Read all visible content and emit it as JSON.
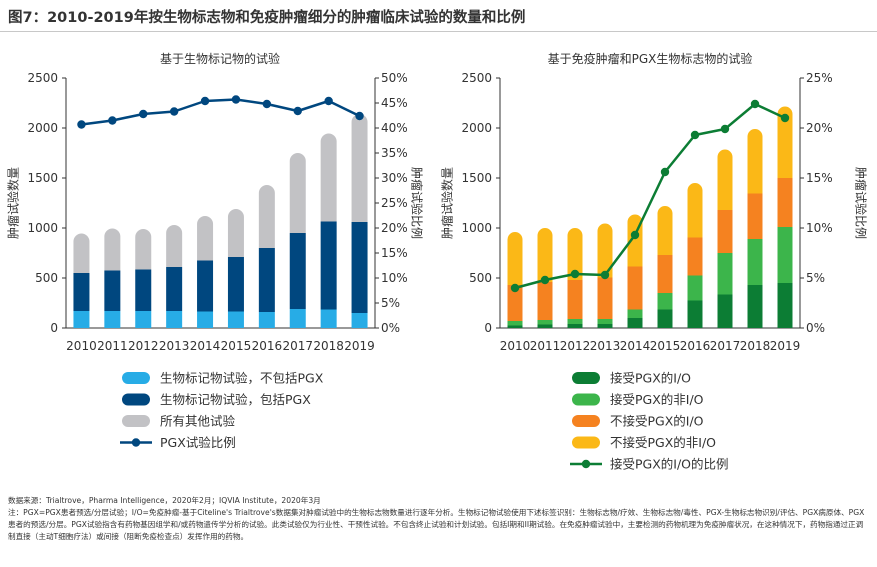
{
  "figure_title": "图7：2010-2019年按生物标志物和免疫肿瘤细分的肿瘤临床试验的数量和比例",
  "source": "数据来源：Trialtrove，Pharma Intelligence，2020年2月；IQVIA Institute，2020年3月",
  "note": "注：PGX=PGX患者预选/分层试验；I/O=免疫肿瘤-基于Citeline's Trialtrove's数据集对肿瘤试验中的生物标志物数量进行逐年分析。生物标记物试验使用下述标签识别：生物标志物/疗效、生物标志物/毒性、PGX-生物标志物识别/评估、PGX病原体、PGX患者的预选/分层。PGX试验指含有药物基因组学和/或药物遗传学分析的试验。此类试验仅为行业性、干预性试验。不包含终止试验和计划试验。包括I期和II期试验。在免疫肿瘤试验中，主要检测的药物机理为免疫肿瘤状况，在这种情况下，药物指通过正调制直接（主动T细胞疗法）或间接（阻断免疫检查点）发挥作用的药物。",
  "colors": {
    "light_blue": "#27ace6",
    "dark_blue": "#00477f",
    "gray": "#c2c2c5",
    "dark_green": "#0c7d34",
    "light_green": "#3cb54b",
    "orange": "#f58220",
    "yellow": "#fbb817",
    "axis": "#333333"
  },
  "chart_data": [
    {
      "id": "left",
      "type": "bar",
      "stacked": true,
      "title": "基于生物标记物的试验",
      "ylabel": "肿瘤试验数量",
      "y2label": "肿瘤试验比例",
      "ylim": [
        0,
        2500
      ],
      "yticks": [
        "0",
        "500",
        "1000",
        "1500",
        "2000",
        "2500"
      ],
      "y2lim": [
        0,
        50
      ],
      "y2ticks": [
        "0%",
        "5%",
        "10%",
        "15%",
        "20%",
        "25%",
        "30%",
        "35%",
        "40%",
        "45%",
        "50%"
      ],
      "categories": [
        "2010",
        "2011",
        "2012",
        "2013",
        "2014",
        "2015",
        "2016",
        "2017",
        "2018",
        "2019"
      ],
      "series": [
        {
          "name": "生物标记物试验，不包括PGX",
          "color_key": "light_blue",
          "values": [
            170,
            170,
            170,
            170,
            165,
            165,
            160,
            190,
            185,
            150
          ]
        },
        {
          "name": "生物标记物试验，包括PGX",
          "color_key": "dark_blue",
          "values": [
            380,
            405,
            415,
            440,
            510,
            545,
            640,
            760,
            880,
            910
          ]
        },
        {
          "name": "所有其他试验",
          "color_key": "gray",
          "values": [
            395,
            420,
            405,
            420,
            445,
            480,
            630,
            800,
            880,
            1080
          ]
        }
      ],
      "line": {
        "name": "PGX试验比例",
        "color_key": "dark_blue",
        "values": [
          40.7,
          41.5,
          42.8,
          43.3,
          45.4,
          45.7,
          44.8,
          43.4,
          45.4,
          42.4
        ]
      },
      "legend": [
        {
          "label": "生物标记物试验，不包括PGX",
          "kind": "rect",
          "color_key": "light_blue"
        },
        {
          "label": "生物标记物试验，包括PGX",
          "kind": "rect",
          "color_key": "dark_blue"
        },
        {
          "label": "所有其他试验",
          "kind": "rect",
          "color_key": "gray"
        },
        {
          "label": "PGX试验比例",
          "kind": "line",
          "color_key": "dark_blue"
        }
      ]
    },
    {
      "id": "right",
      "type": "bar",
      "stacked": true,
      "title": "基于免疫肿瘤和PGX生物标志物的试验",
      "ylabel": "肿瘤试验数量",
      "y2label": "肿瘤试验比例",
      "ylim": [
        0,
        2500
      ],
      "yticks": [
        "0",
        "500",
        "1000",
        "1500",
        "2000",
        "2500"
      ],
      "y2lim": [
        0,
        25
      ],
      "y2ticks": [
        "0%",
        "5%",
        "10%",
        "15%",
        "20%",
        "25%"
      ],
      "categories": [
        "2010",
        "2011",
        "2012",
        "2013",
        "2014",
        "2015",
        "2016",
        "2017",
        "2018",
        "2019"
      ],
      "series": [
        {
          "name": "接受PGX的I/O",
          "color_key": "dark_green",
          "values": [
            25,
            35,
            40,
            40,
            100,
            185,
            275,
            335,
            430,
            450
          ]
        },
        {
          "name": "接受PGX的非I/O",
          "color_key": "light_green",
          "values": [
            45,
            45,
            50,
            50,
            85,
            165,
            250,
            415,
            460,
            560
          ]
        },
        {
          "name": "不接受PGX的I/O",
          "color_key": "orange",
          "values": [
            360,
            380,
            390,
            415,
            430,
            380,
            380,
            430,
            455,
            490
          ]
        },
        {
          "name": "不接受PGX的非I/O",
          "color_key": "yellow",
          "values": [
            530,
            540,
            520,
            540,
            520,
            490,
            545,
            605,
            645,
            715
          ]
        }
      ],
      "line": {
        "name": "接受PGX的I/O的比例",
        "color_key": "dark_green",
        "values": [
          4.0,
          4.8,
          5.4,
          5.3,
          9.3,
          15.6,
          19.3,
          19.9,
          22.4,
          21.0
        ]
      },
      "legend": [
        {
          "label": "接受PGX的I/O",
          "kind": "rect",
          "color_key": "dark_green"
        },
        {
          "label": "接受PGX的非I/O",
          "kind": "rect",
          "color_key": "light_green"
        },
        {
          "label": "不接受PGX的I/O",
          "kind": "rect",
          "color_key": "orange"
        },
        {
          "label": "不接受PGX的非I/O",
          "kind": "rect",
          "color_key": "yellow"
        },
        {
          "label": "接受PGX的I/O的比例",
          "kind": "line",
          "color_key": "dark_green"
        }
      ]
    }
  ]
}
